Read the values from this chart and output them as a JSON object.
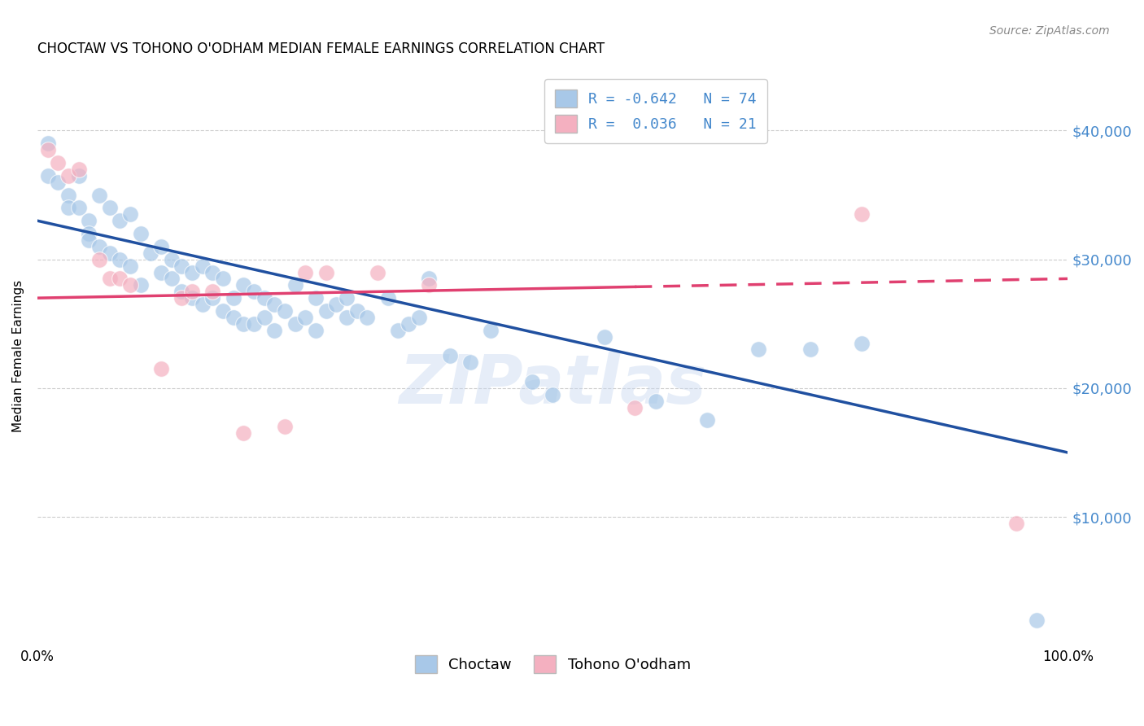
{
  "title": "CHOCTAW VS TOHONO O'ODHAM MEDIAN FEMALE EARNINGS CORRELATION CHART",
  "source": "Source: ZipAtlas.com",
  "ylabel": "Median Female Earnings",
  "y_ticks": [
    10000,
    20000,
    30000,
    40000
  ],
  "y_tick_labels": [
    "$10,000",
    "$20,000",
    "$30,000",
    "$40,000"
  ],
  "xlim": [
    0.0,
    1.0
  ],
  "ylim": [
    0,
    45000
  ],
  "legend_blue_label": "R = -0.642   N = 74",
  "legend_pink_label": "R =  0.036   N = 21",
  "legend_choctaw": "Choctaw",
  "legend_tohono": "Tohono O'odham",
  "blue_color": "#A8C8E8",
  "pink_color": "#F4B0C0",
  "blue_line_color": "#2050A0",
  "pink_line_color": "#E04070",
  "watermark": "ZIPatlas",
  "background_color": "#FFFFFF",
  "choctaw_x": [
    0.01,
    0.01,
    0.02,
    0.03,
    0.03,
    0.04,
    0.04,
    0.05,
    0.05,
    0.05,
    0.06,
    0.06,
    0.07,
    0.07,
    0.08,
    0.08,
    0.09,
    0.09,
    0.1,
    0.1,
    0.11,
    0.12,
    0.12,
    0.13,
    0.13,
    0.14,
    0.14,
    0.15,
    0.15,
    0.16,
    0.16,
    0.17,
    0.17,
    0.18,
    0.18,
    0.19,
    0.19,
    0.2,
    0.2,
    0.21,
    0.21,
    0.22,
    0.22,
    0.23,
    0.23,
    0.24,
    0.25,
    0.25,
    0.26,
    0.27,
    0.27,
    0.28,
    0.29,
    0.3,
    0.3,
    0.31,
    0.32,
    0.34,
    0.35,
    0.36,
    0.37,
    0.38,
    0.4,
    0.42,
    0.44,
    0.48,
    0.5,
    0.55,
    0.6,
    0.65,
    0.7,
    0.75,
    0.8,
    0.97
  ],
  "choctaw_y": [
    39000,
    36500,
    36000,
    35000,
    34000,
    36500,
    34000,
    33000,
    32000,
    31500,
    35000,
    31000,
    34000,
    30500,
    33000,
    30000,
    33500,
    29500,
    32000,
    28000,
    30500,
    31000,
    29000,
    30000,
    28500,
    29500,
    27500,
    29000,
    27000,
    29500,
    26500,
    29000,
    27000,
    28500,
    26000,
    27000,
    25500,
    28000,
    25000,
    27500,
    25000,
    27000,
    25500,
    26500,
    24500,
    26000,
    28000,
    25000,
    25500,
    27000,
    24500,
    26000,
    26500,
    27000,
    25500,
    26000,
    25500,
    27000,
    24500,
    25000,
    25500,
    28500,
    22500,
    22000,
    24500,
    20500,
    19500,
    24000,
    19000,
    17500,
    23000,
    23000,
    23500,
    2000
  ],
  "tohono_x": [
    0.01,
    0.02,
    0.03,
    0.04,
    0.06,
    0.07,
    0.08,
    0.09,
    0.12,
    0.14,
    0.15,
    0.17,
    0.2,
    0.24,
    0.26,
    0.28,
    0.33,
    0.38,
    0.58,
    0.8,
    0.95
  ],
  "tohono_y": [
    38500,
    37500,
    36500,
    37000,
    30000,
    28500,
    28500,
    28000,
    21500,
    27000,
    27500,
    27500,
    16500,
    17000,
    29000,
    29000,
    29000,
    28000,
    18500,
    33500,
    9500
  ],
  "blue_line_x0": 0.0,
  "blue_line_x1": 1.0,
  "blue_line_y0": 33000,
  "blue_line_y1": 15000,
  "pink_line_solid_x0": 0.0,
  "pink_line_solid_x1": 0.58,
  "pink_line_dash_x0": 0.58,
  "pink_line_dash_x1": 1.0,
  "pink_line_y0": 27000,
  "pink_line_y1": 28500
}
